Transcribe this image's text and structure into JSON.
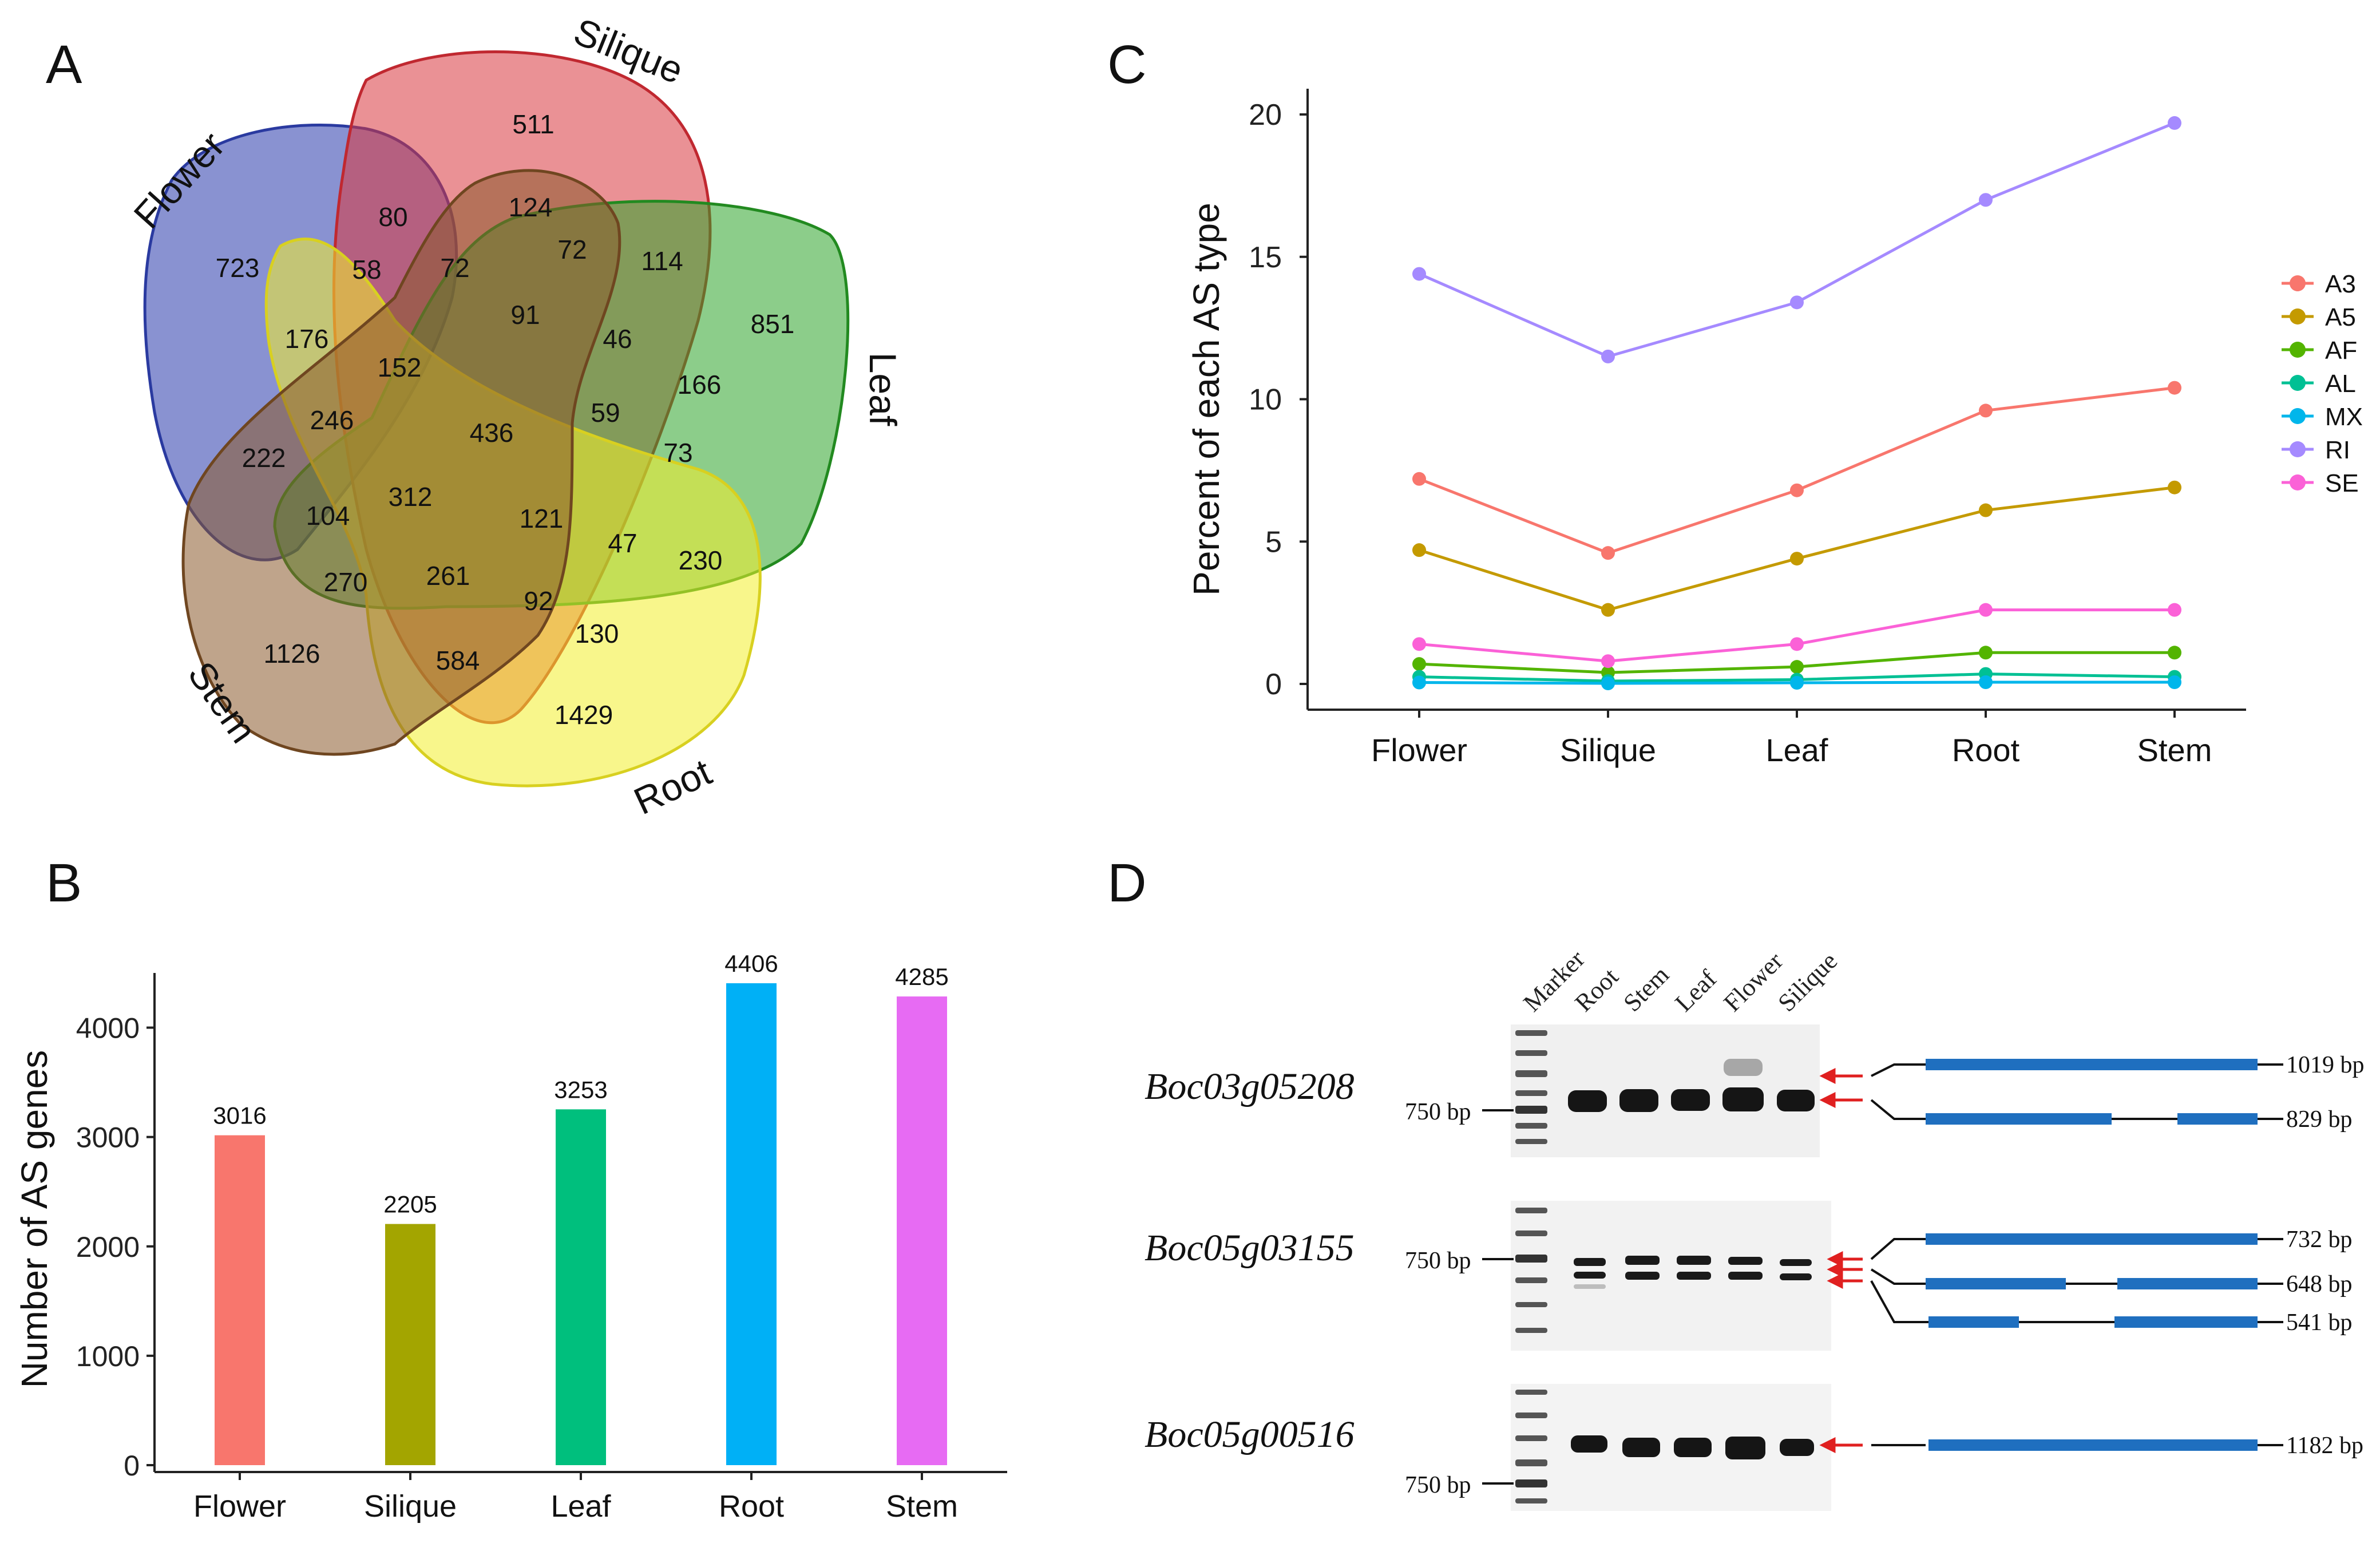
{
  "panels": {
    "a": "A",
    "b": "B",
    "c": "C",
    "d": "D"
  },
  "venn": {
    "set_labels": {
      "flower": "Flower",
      "silique": "Silique",
      "leaf": "Leaf",
      "root": "Root",
      "stem": "Stem"
    },
    "colors": {
      "flower": "#3344b0",
      "silique": "#d9363e",
      "leaf": "#2da42a",
      "root": "#f2ef2c",
      "stem": "#8a5a2b"
    },
    "counts": {
      "n511": "511",
      "n723": "723",
      "n851": "851",
      "n1429": "1429",
      "n1126": "1126",
      "n80": "80",
      "n124": "124",
      "n72a": "72",
      "n72b": "72",
      "n114": "114",
      "n58": "58",
      "n91": "91",
      "n176": "176",
      "n46": "46",
      "n152": "152",
      "n166": "166",
      "n246": "246",
      "n436": "436",
      "n59": "59",
      "n222": "222",
      "n73": "73",
      "n104": "104",
      "n312": "312",
      "n121": "121",
      "n47": "47",
      "n230": "230",
      "n270": "270",
      "n261": "261",
      "n92": "92",
      "n130": "130",
      "n584": "584"
    }
  },
  "chart_data": [
    {
      "type": "bar",
      "panel": "B",
      "title": "",
      "xlabel": "",
      "ylabel": "Number of AS genes",
      "categories": [
        "Flower",
        "Silique",
        "Leaf",
        "Root",
        "Stem"
      ],
      "values": [
        3016,
        2205,
        3253,
        4406,
        4285
      ],
      "colors": [
        "#f8766d",
        "#a3a500",
        "#00bf7d",
        "#00b0f6",
        "#e76bf3"
      ],
      "ylim": [
        0,
        4500
      ],
      "yticks": [
        0,
        1000,
        2000,
        3000,
        4000
      ]
    },
    {
      "type": "line",
      "panel": "C",
      "title": "",
      "xlabel": "",
      "ylabel": "Percent of each AS type",
      "categories": [
        "Flower",
        "Silique",
        "Leaf",
        "Root",
        "Stem"
      ],
      "ylim": [
        0,
        20
      ],
      "yticks": [
        0,
        5,
        10,
        15,
        20
      ],
      "legend_position": "right",
      "series": [
        {
          "name": "A3",
          "color": "#f8766d",
          "values": [
            7.2,
            4.6,
            6.8,
            9.6,
            10.4
          ]
        },
        {
          "name": "A5",
          "color": "#c49a00",
          "values": [
            4.7,
            2.6,
            4.4,
            6.1,
            6.9
          ]
        },
        {
          "name": "AF",
          "color": "#53b400",
          "values": [
            0.7,
            0.4,
            0.6,
            1.1,
            1.1
          ]
        },
        {
          "name": "AL",
          "color": "#00c094",
          "values": [
            0.25,
            0.1,
            0.15,
            0.35,
            0.25
          ]
        },
        {
          "name": "MX",
          "color": "#00b6eb",
          "values": [
            0.05,
            0.02,
            0.04,
            0.06,
            0.06
          ]
        },
        {
          "name": "RI",
          "color": "#a58aff",
          "values": [
            14.4,
            11.5,
            13.4,
            17.0,
            19.7
          ]
        },
        {
          "name": "SE",
          "color": "#fb61d7",
          "values": [
            1.4,
            0.8,
            1.4,
            2.6,
            2.6
          ]
        }
      ]
    }
  ],
  "gel": {
    "lane_labels": [
      "Marker",
      "Root",
      "Stem",
      "Leaf",
      "Flower",
      "Silique"
    ],
    "genes": [
      {
        "name": "Boc03g05208",
        "marker_label": "750 bp",
        "bands": [
          "1019 bp",
          "829 bp"
        ]
      },
      {
        "name": "Boc05g03155",
        "marker_label": "750 bp",
        "bands": [
          "732 bp",
          "648 bp",
          "541 bp"
        ]
      },
      {
        "name": "Boc05g00516",
        "marker_label": "750 bp",
        "bands": [
          "1182 bp"
        ]
      }
    ],
    "colors": {
      "exon": "#1f6fbf",
      "arrow": "#e02020"
    }
  }
}
